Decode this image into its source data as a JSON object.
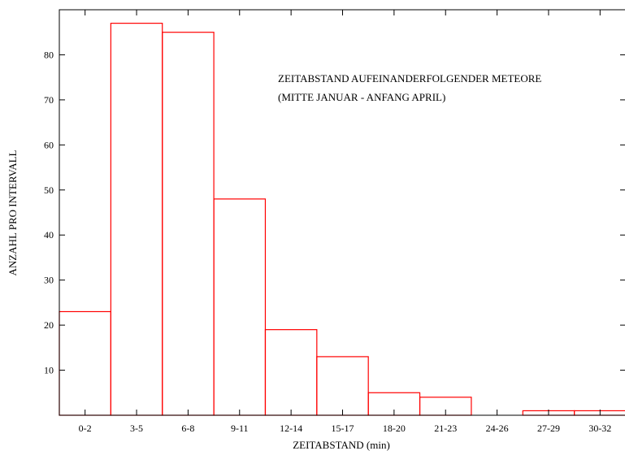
{
  "chart_data": {
    "type": "bar",
    "title": "",
    "annotation": [
      "ZEITABSTAND AUFEINANDERFOLGENDER METEORE",
      "(MITTE JANUAR - ANFANG APRIL)"
    ],
    "xlabel": "ZEITABSTAND (min)",
    "ylabel": "ANZAHL PRO INTERVALL",
    "categories": [
      "0-2",
      "3-5",
      "6-8",
      "9-11",
      "12-14",
      "15-17",
      "18-20",
      "21-23",
      "24-26",
      "27-29",
      "30-32"
    ],
    "values": [
      23,
      87,
      85,
      48,
      19,
      13,
      5,
      4,
      0,
      1,
      1
    ],
    "ylim": [
      0,
      90
    ],
    "yticks": [
      10,
      20,
      30,
      40,
      50,
      60,
      70,
      80
    ],
    "grid": false,
    "legend": "none",
    "bar_color": "#ff0000",
    "axis_color": "#000000"
  }
}
